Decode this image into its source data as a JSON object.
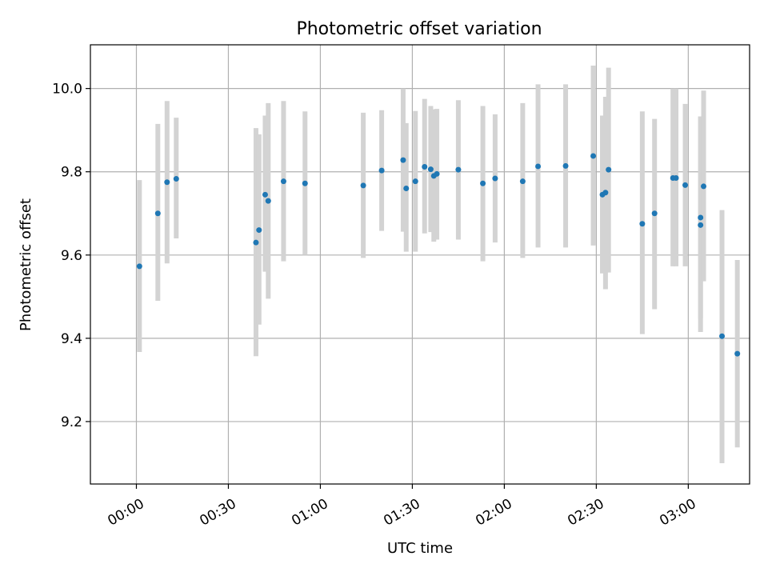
{
  "chart_data": {
    "type": "scatter",
    "title": "Photometric offset variation",
    "xlabel": "UTC time",
    "ylabel": "Photometric offset",
    "x_unit": "UTC time (HH:MM)",
    "xlim": [
      "23:45",
      "03:20"
    ],
    "ylim": [
      9.05,
      10.105
    ],
    "x_ticks": [
      "00:00",
      "00:30",
      "01:00",
      "01:30",
      "02:00",
      "02:30",
      "03:00"
    ],
    "y_ticks": [
      9.2,
      9.4,
      9.6,
      9.8,
      10.0
    ],
    "y_tick_labels": [
      "9.2",
      "9.4",
      "9.6",
      "9.8",
      "10.0"
    ],
    "grid": true,
    "point_color": "#1f77b4",
    "errorbar_color": "#d3d3d3",
    "series": [
      {
        "points": [
          {
            "t": "00:01",
            "y": 9.573,
            "ylo": 9.367,
            "yhi": 9.78
          },
          {
            "t": "00:07",
            "y": 9.7,
            "ylo": 9.49,
            "yhi": 9.915
          },
          {
            "t": "00:10",
            "y": 9.775,
            "ylo": 9.58,
            "yhi": 9.97
          },
          {
            "t": "00:13",
            "y": 9.783,
            "ylo": 9.64,
            "yhi": 9.93
          },
          {
            "t": "00:39",
            "y": 9.63,
            "ylo": 9.357,
            "yhi": 9.905
          },
          {
            "t": "00:40",
            "y": 9.66,
            "ylo": 9.433,
            "yhi": 9.89
          },
          {
            "t": "00:42",
            "y": 9.745,
            "ylo": 9.56,
            "yhi": 9.935
          },
          {
            "t": "00:43",
            "y": 9.73,
            "ylo": 9.495,
            "yhi": 9.965
          },
          {
            "t": "00:48",
            "y": 9.777,
            "ylo": 9.585,
            "yhi": 9.97
          },
          {
            "t": "00:55",
            "y": 9.772,
            "ylo": 9.6,
            "yhi": 9.945
          },
          {
            "t": "01:14",
            "y": 9.767,
            "ylo": 9.593,
            "yhi": 9.942
          },
          {
            "t": "01:20",
            "y": 9.803,
            "ylo": 9.658,
            "yhi": 9.948
          },
          {
            "t": "01:27",
            "y": 9.828,
            "ylo": 9.656,
            "yhi": 10.0
          },
          {
            "t": "01:28",
            "y": 9.76,
            "ylo": 9.608,
            "yhi": 9.917
          },
          {
            "t": "01:31",
            "y": 9.777,
            "ylo": 9.608,
            "yhi": 9.946
          },
          {
            "t": "01:34",
            "y": 9.812,
            "ylo": 9.652,
            "yhi": 9.975
          },
          {
            "t": "01:36",
            "y": 9.806,
            "ylo": 9.655,
            "yhi": 9.958
          },
          {
            "t": "01:37",
            "y": 9.79,
            "ylo": 9.632,
            "yhi": 9.95
          },
          {
            "t": "01:38",
            "y": 9.795,
            "ylo": 9.637,
            "yhi": 9.951
          },
          {
            "t": "01:45",
            "y": 9.805,
            "ylo": 9.637,
            "yhi": 9.972
          },
          {
            "t": "01:53",
            "y": 9.772,
            "ylo": 9.585,
            "yhi": 9.958
          },
          {
            "t": "01:57",
            "y": 9.784,
            "ylo": 9.63,
            "yhi": 9.938
          },
          {
            "t": "02:06",
            "y": 9.777,
            "ylo": 9.593,
            "yhi": 9.965
          },
          {
            "t": "02:11",
            "y": 9.813,
            "ylo": 9.618,
            "yhi": 10.01
          },
          {
            "t": "02:20",
            "y": 9.814,
            "ylo": 9.618,
            "yhi": 10.01
          },
          {
            "t": "02:29",
            "y": 9.838,
            "ylo": 9.623,
            "yhi": 10.055
          },
          {
            "t": "02:32",
            "y": 9.745,
            "ylo": 9.556,
            "yhi": 9.935
          },
          {
            "t": "02:33",
            "y": 9.75,
            "ylo": 9.518,
            "yhi": 9.98
          },
          {
            "t": "02:34",
            "y": 9.805,
            "ylo": 9.558,
            "yhi": 10.05
          },
          {
            "t": "02:45",
            "y": 9.675,
            "ylo": 9.41,
            "yhi": 9.945
          },
          {
            "t": "02:49",
            "y": 9.7,
            "ylo": 9.47,
            "yhi": 9.927
          },
          {
            "t": "02:55",
            "y": 9.785,
            "ylo": 9.573,
            "yhi": 10.0
          },
          {
            "t": "02:56",
            "y": 9.785,
            "ylo": 9.573,
            "yhi": 10.0
          },
          {
            "t": "02:59",
            "y": 9.768,
            "ylo": 9.573,
            "yhi": 9.963
          },
          {
            "t": "03:04",
            "y": 9.672,
            "ylo": 9.415,
            "yhi": 9.933
          },
          {
            "t": "03:04",
            "y": 9.69,
            "ylo": 9.447,
            "yhi": 9.933
          },
          {
            "t": "03:05",
            "y": 9.765,
            "ylo": 9.537,
            "yhi": 9.995
          },
          {
            "t": "03:11",
            "y": 9.405,
            "ylo": 9.1,
            "yhi": 9.708
          },
          {
            "t": "03:16",
            "y": 9.363,
            "ylo": 9.138,
            "yhi": 9.588
          }
        ]
      }
    ]
  }
}
